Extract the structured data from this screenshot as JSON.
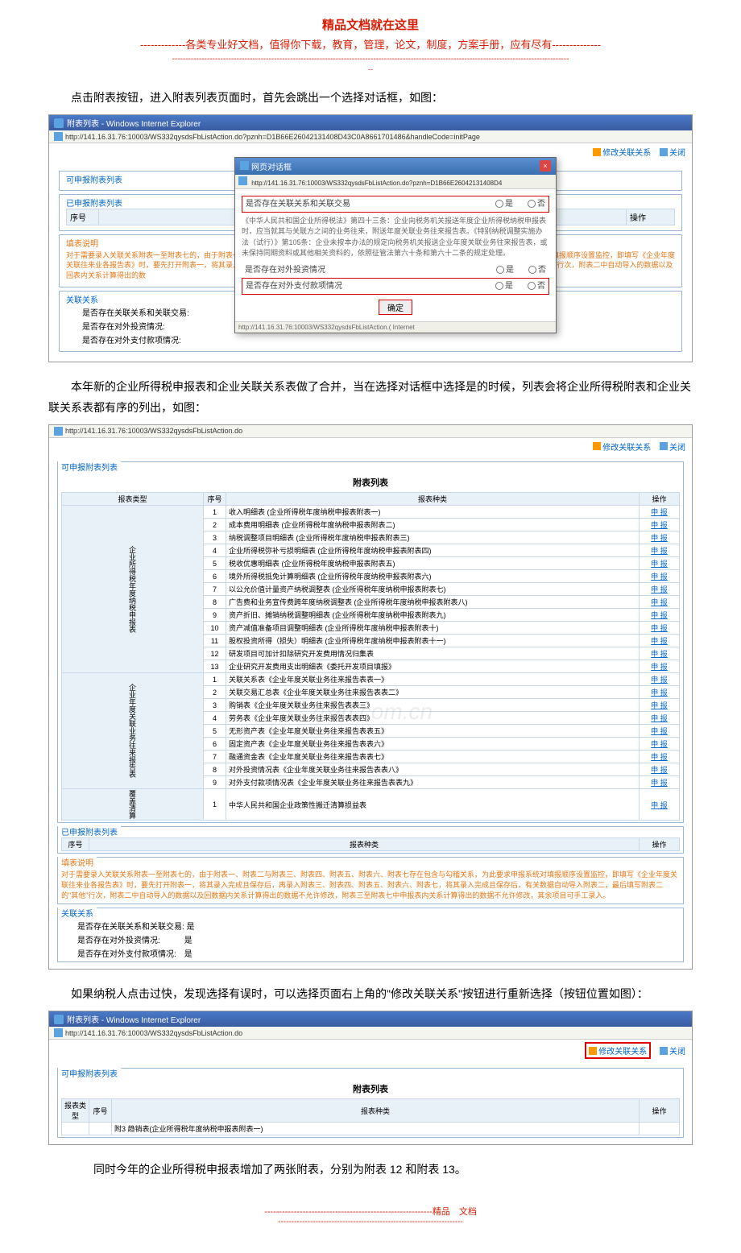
{
  "header": {
    "title": "精品文档就在这里",
    "sub": "-------------各类专业好文档，值得你下载，教育，管理，论文，制度，方案手册，应有尽有--------------",
    "divider": "----------------------------------------------------------------------------------------------------------------------------------------------------",
    "divider2": "--"
  },
  "para1": "点击附表按钮，进入附表列表页面时，首先会跳出一个选择对话框，如图：",
  "shot1": {
    "ie_title": "附表列表 - Windows Internet Explorer",
    "addr": "http://141.16.31.76:10003/WS332qysdsFbListAction.do?pznh=D1B66E26042131408D43C0A8661701486&handleCode=initPage",
    "tb_modify": "修改关联关系",
    "tb_close": "关闭",
    "fs_available": "可申报附表列表",
    "fs_done": "已申报附表列表",
    "th_seq": "序号",
    "th_op": "操作",
    "fs_note_title": "填表说明",
    "note_left": "对于需要录入关联关系附表一至附表七的，由于附表一、附表二与附表三、附表四、附表五、附表六、附表七存在包含与勾稽关系，为此要求申报系统对填报顺序设置监控，即填写《企业年度关联往来业各报告表》时，要先打开附表一，将其录入完成且保存后，再录入附表三、附表四、附表五、附表六、附表七，将其录入完成且保存后，\"其他\"行次，附表二中自动导入的数据以及回表内关系计算得出的数",
    "fs_rel": "关联关系",
    "rel1": "是否存在关联关系和关联交易:",
    "rel2": "是否存在对外投资情况:",
    "rel3": "是否存在对外支付款项情况:",
    "dialog": {
      "title": "网页对话框",
      "addr": "http://141.16.31.76:10003/WS332qysdsFbListAction.do?pznh=D1B66E26042131408D4",
      "q1": "是否存在关联关系和关联交易",
      "yes": "是",
      "no": "否",
      "law_text": "《中华人民共和国企业所得税法》第四十三条：企业向税务机关报送年度企业所得税纳税申报表时，应当就其与关联方之间的业务往来，附送年度关联业务往来报告表。《特别纳税调整实施办法（试行）》第105条：企业未按本办法的规定向税务机关报送企业年度关联业务往来报告表，或未保持同期资料或其他相关资料的，依照征管法第六十条和第六十二条的规定处理。",
      "q2": "是否存在对外投资情况",
      "q3": "是否存在对外支付款项情况",
      "ok": "确定",
      "footer": "http://141.16.31.76:10003/WS332qysdsFbListAction.(  Internet"
    }
  },
  "para2": "本年新的企业所得税申报表和企业关联关系表做了合并，当在选择对话框中选择是的时候，列表会将企业所得税附表和企业关联关系表都有序的列出，如图：",
  "shot2": {
    "addr": "http://141.16.31.76:10003/WS332qysdsFbListAction.do",
    "list_title": "附表列表",
    "th_type": "报表类型",
    "th_seq": "序号",
    "th_name": "报表种类",
    "th_op": "操作",
    "btn_sb": "申 报",
    "cat1": "企业所得税年度纳税申报表",
    "cat2": "企业年度关联业务往来报告表",
    "cat3": "覆盖清算",
    "rows1": [
      "收入明细表 (企业所得税年度纳税申报表附表一)",
      "成本费用明细表 (企业所得税年度纳税申报表附表二)",
      "纳税调整项目明细表 (企业所得税年度纳税申报表附表三)",
      "企业所得税弥补亏损明细表 (企业所得税年度纳税申报表附表四)",
      "税收优惠明细表 (企业所得税年度纳税申报表附表五)",
      "境外所得税抵免计算明细表 (企业所得税年度纳税申报表附表六)",
      "以公允价值计量资产纳税调整表 (企业所得税年度纳税申报表附表七)",
      "广告费和业务宣传费跨年度纳税调整表 (企业所得税年度纳税申报表附表八)",
      "资产折旧、摊销纳税调整明细表 (企业所得税年度纳税申报表附表九)",
      "资产减值准备项目调整明细表 (企业所得税年度纳税申报表附表十)",
      "股权投资所得（损失）明细表 (企业所得税年度纳税申报表附表十一)",
      "研发项目可加计扣除研究开发费用情况归集表",
      "企业研究开发费用支出明细表《委托开发项目填报》"
    ],
    "rows2": [
      "关联关系表《企业年度关联业务往来报告表表一》",
      "关联交易汇总表《企业年度关联业务往来报告表表二》",
      "购销表《企业年度关联业务往来报告表表三》",
      "劳务表《企业年度关联业务往来报告表表四》",
      "无形资产表《企业年度关联业务往来报告表表五》",
      "固定资产表《企业年度关联业务往来报告表表六》",
      "融通资金表《企业年度关联业务往来报告表表七》",
      "对外投资情况表《企业年度关联业务往来报告表表八》",
      "对外支付款项情况表《企业年度关联业务往来报告表表九》"
    ],
    "rows3": [
      "中华人民共和国企业政策性搬迁清算损益表"
    ],
    "done_title": "已申报附表列表",
    "fs_note_title": "填表说明",
    "note": "对于需要录入关联关系附表一至附表七的，由于附表一、附表二与附表三、附表四、附表五、附表六、附表七存在包含与勾稽关系，为此要求申报系统对填报顺序设置监控，即填写《企业年度关联往来业各报告表》时，要先打开附表一，将其录入完成且保存后，再录入附表三、附表四、附表五、附表六、附表七，将其录入完成且保存后，有关数据自动导入附表二，最后填写附表二的\"其他\"行次，附表二中自动导入的数据以及回数据内关系计算得出的数据不允许修改，附表三至附表七中申报表内关系计算得出的数据不允许修改，其余项目可手工录入。",
    "fs_rel": "关联关系",
    "rel1": "是否存在关联关系和关联交易: 是",
    "rel2": "是否存在对外投资情况:　　　是",
    "rel3": "是否存在对外支付款项情况:　是",
    "watermark": "zixin.com.cn"
  },
  "para3": "如果纳税人点击过快，发现选择有误时，可以选择页面右上角的\"修改关联关系\"按钮进行重新选择（按钮位置如图）：",
  "shot3": {
    "ie_title": "附表列表 - Windows Internet Explorer",
    "addr": "http://141.16.31.76:10003/WS332qysdsFbListAction.do",
    "list_title": "附表列表",
    "row": "附3 趋销表(企业所得税年度纳税申报表附表一)"
  },
  "para4": "同时今年的企业所得税申报表增加了两张附表，分别为附表 12 和附表 13。",
  "footer": {
    "l1": "---------------------------------------------------------精品　文档",
    "l2": "---------------------------------------------------------------------"
  }
}
